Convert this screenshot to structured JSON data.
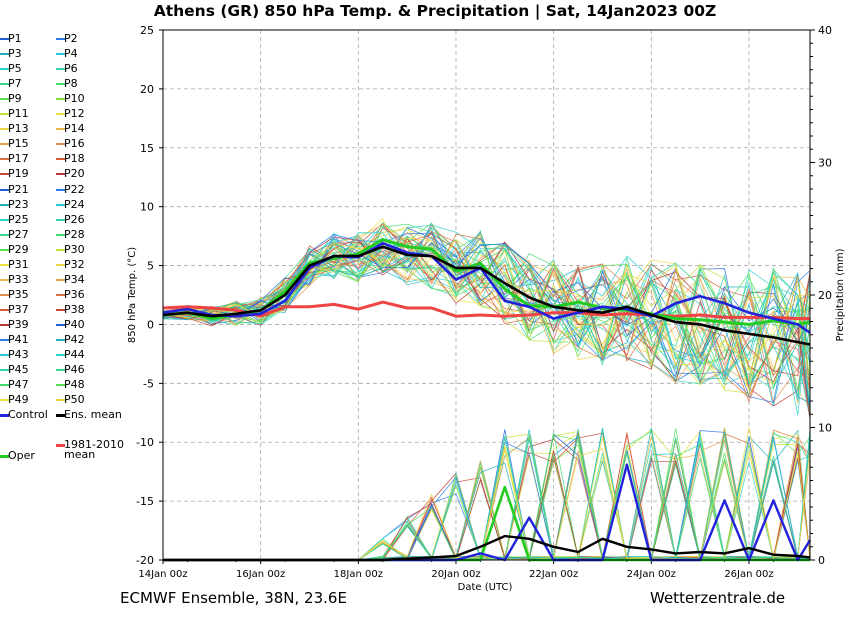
{
  "title": "Athens  (GR)  850 hPa Temp. & Precipitation | Sat, 14Jan2023 00Z",
  "footer": {
    "left": "ECMWF Ensemble, 38N, 23.6E",
    "right": "Wetterzentrale.de"
  },
  "colors": {
    "control": "#2222dd",
    "ens_mean": "#000000",
    "oper": "#22cc22",
    "climate_mean": "#ee4444",
    "grid": "#aaaaaa"
  },
  "legend": {
    "members": [
      "P1",
      "P2",
      "P3",
      "P4",
      "P5",
      "P6",
      "P7",
      "P8",
      "P9",
      "P10",
      "P11",
      "P12",
      "P13",
      "P14",
      "P15",
      "P16",
      "P17",
      "P18",
      "P19",
      "P20",
      "P21",
      "P22",
      "P23",
      "P24",
      "P25",
      "P26",
      "P27",
      "P28",
      "P29",
      "P30",
      "P31",
      "P32",
      "P33",
      "P34",
      "P35",
      "P36",
      "P37",
      "P38",
      "P39",
      "P40",
      "P41",
      "P42",
      "P43",
      "P44",
      "P45",
      "P46",
      "P47",
      "P48",
      "P49",
      "P50"
    ],
    "member_colors": [
      "#1f5fd8",
      "#2e7be8",
      "#1fb0c0",
      "#25c7d8",
      "#2bd4cc",
      "#2fd6b0",
      "#33d990",
      "#3fdc70",
      "#55e050",
      "#7ee030",
      "#c8e035",
      "#eee040",
      "#ecd545",
      "#eab84a",
      "#e8a050",
      "#e28850",
      "#dd7040",
      "#d85a3a",
      "#c84838",
      "#b83838",
      "#1f5fd8",
      "#2e7be8",
      "#1fb0c0",
      "#25c7d8",
      "#2bd4cc",
      "#2fd6b0",
      "#33d990",
      "#3fdc70",
      "#55e050",
      "#c8e035",
      "#eee040",
      "#ecd545",
      "#eab84a",
      "#e8a050",
      "#e28850",
      "#dd7040",
      "#d85a3a",
      "#c84838",
      "#b83838",
      "#1f5fd8",
      "#2e7be8",
      "#1fb0c0",
      "#25c7d8",
      "#2bd4cc",
      "#2fd6b0",
      "#33d990",
      "#3fdc70",
      "#55e050",
      "#eee040",
      "#ecd545"
    ],
    "control": "Control",
    "ens_mean": "Ens. mean",
    "oper": "Oper",
    "climate_mean": "1981-2010\nmean"
  },
  "chart_data": {
    "type": "line",
    "xlabel": "Date (UTC)",
    "ylabel": "850 hPa Temp. (°C)",
    "y2label": "Precipitation (mm)",
    "xlim": [
      0,
      13.25
    ],
    "ylim": [
      -20,
      25
    ],
    "y2lim": [
      0,
      40
    ],
    "x_ticks": [
      {
        "pos": 0,
        "label": "14Jan 00z"
      },
      {
        "pos": 2,
        "label": "16Jan 00z"
      },
      {
        "pos": 4,
        "label": "18Jan 00z"
      },
      {
        "pos": 6,
        "label": "20Jan 00z"
      },
      {
        "pos": 8,
        "label": "22Jan 00z"
      },
      {
        "pos": 10,
        "label": "24Jan 00z"
      },
      {
        "pos": 12,
        "label": "26Jan 00z"
      }
    ],
    "y_ticks": [
      25,
      20,
      15,
      10,
      5,
      0,
      -5,
      -10,
      -15,
      -20
    ],
    "y2_ticks": [
      40,
      30,
      20,
      10,
      0
    ],
    "grid": true,
    "x_days": [
      0,
      0.5,
      1,
      1.5,
      2,
      2.5,
      3,
      3.5,
      4,
      4.5,
      5,
      5.5,
      6,
      6.5,
      7,
      7.5,
      8,
      8.5,
      9,
      9.5,
      10,
      10.5,
      11,
      11.5,
      12,
      12.5,
      13,
      13.25
    ],
    "ens_mean_temp": [
      0.8,
      1.0,
      0.7,
      0.9,
      1.2,
      2.5,
      5.0,
      5.8,
      5.8,
      6.6,
      5.9,
      5.8,
      4.8,
      4.8,
      3.5,
      2.3,
      1.5,
      1.2,
      1.0,
      1.5,
      0.8,
      0.2,
      0.0,
      -0.5,
      -0.8,
      -1.1,
      -1.5,
      -1.7
    ],
    "control_temp": [
      1.0,
      1.3,
      0.8,
      0.7,
      0.9,
      2.0,
      4.8,
      5.8,
      5.7,
      6.9,
      6.1,
      5.8,
      3.8,
      4.8,
      2.0,
      1.5,
      0.5,
      1.0,
      1.5,
      1.3,
      0.7,
      1.8,
      2.4,
      1.8,
      1.0,
      0.5,
      0.0,
      -0.7
    ],
    "oper_temp": [
      0.8,
      1.0,
      0.5,
      0.8,
      1.2,
      2.8,
      5.2,
      5.6,
      6.0,
      7.2,
      6.6,
      6.4,
      4.5,
      5.2,
      3.0,
      1.6,
      1.5,
      1.9,
      1.4,
      1.2,
      0.9,
      0.5,
      0.4,
      0.2,
      0.0,
      0.3,
      0.0,
      0.2
    ],
    "climate_mean_temp": [
      1.4,
      1.5,
      1.4,
      1.2,
      0.7,
      1.5,
      1.5,
      1.7,
      1.3,
      1.9,
      1.4,
      1.4,
      0.7,
      0.8,
      0.7,
      0.8,
      1.0,
      1.0,
      0.8,
      0.9,
      0.8,
      0.7,
      0.8,
      0.6,
      0.6,
      0.6,
      0.5,
      0.5
    ],
    "ens_mean_precip": [
      0,
      0,
      0,
      0,
      0,
      0,
      0,
      0,
      0,
      0,
      0.1,
      0.2,
      0.3,
      1.0,
      1.8,
      1.6,
      1.0,
      0.6,
      1.6,
      1.0,
      0.8,
      0.5,
      0.6,
      0.5,
      0.9,
      0.4,
      0.3,
      0.2
    ],
    "control_precip": [
      0,
      0,
      0,
      0,
      0,
      0,
      0,
      0,
      0,
      0,
      0,
      0,
      0,
      0.5,
      0,
      3.2,
      0,
      0,
      0,
      7.2,
      0,
      0,
      0,
      4.5,
      0,
      4.5,
      0,
      1.5
    ],
    "oper_precip": [
      0,
      0,
      0,
      0,
      0,
      0,
      0,
      0,
      0,
      0,
      0,
      0,
      0,
      0,
      5.5,
      0,
      0,
      0,
      0,
      0,
      0,
      0,
      0,
      0,
      0,
      0,
      0,
      0
    ]
  }
}
